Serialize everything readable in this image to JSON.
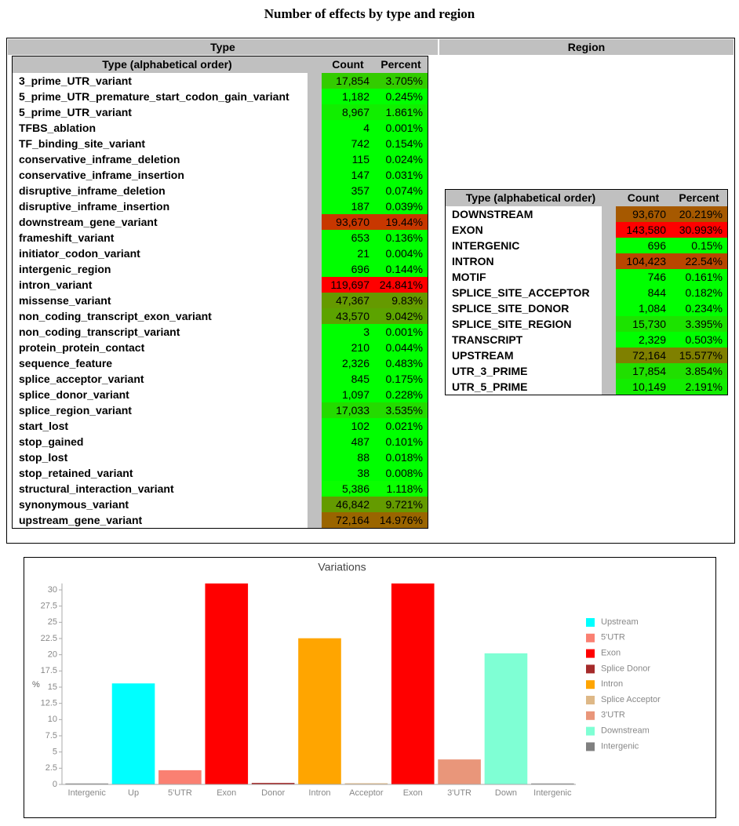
{
  "header": {
    "title": "Number of effects by type and region"
  },
  "layout_table": {
    "headers": [
      "Type",
      "Region"
    ]
  },
  "type_table": {
    "columns": [
      "Type (alphabetical order)",
      "Count",
      "Percent"
    ],
    "rows": [
      [
        "3_prime_UTR_variant",
        "17,854",
        "3.705%"
      ],
      [
        "5_prime_UTR_premature_start_codon_gain_variant",
        "1,182",
        "0.245%"
      ],
      [
        "5_prime_UTR_variant",
        "8,967",
        "1.861%"
      ],
      [
        "TFBS_ablation",
        "4",
        "0.001%"
      ],
      [
        "TF_binding_site_variant",
        "742",
        "0.154%"
      ],
      [
        "conservative_inframe_deletion",
        "115",
        "0.024%"
      ],
      [
        "conservative_inframe_insertion",
        "147",
        "0.031%"
      ],
      [
        "disruptive_inframe_deletion",
        "357",
        "0.074%"
      ],
      [
        "disruptive_inframe_insertion",
        "187",
        "0.039%"
      ],
      [
        "downstream_gene_variant",
        "93,670",
        "19.44%"
      ],
      [
        "frameshift_variant",
        "653",
        "0.136%"
      ],
      [
        "initiator_codon_variant",
        "21",
        "0.004%"
      ],
      [
        "intergenic_region",
        "696",
        "0.144%"
      ],
      [
        "intron_variant",
        "119,697",
        "24.841%"
      ],
      [
        "missense_variant",
        "47,367",
        "9.83%"
      ],
      [
        "non_coding_transcript_exon_variant",
        "43,570",
        "9.042%"
      ],
      [
        "non_coding_transcript_variant",
        "3",
        "0.001%"
      ],
      [
        "protein_protein_contact",
        "210",
        "0.044%"
      ],
      [
        "sequence_feature",
        "2,326",
        "0.483%"
      ],
      [
        "splice_acceptor_variant",
        "845",
        "0.175%"
      ],
      [
        "splice_donor_variant",
        "1,097",
        "0.228%"
      ],
      [
        "splice_region_variant",
        "17,033",
        "3.535%"
      ],
      [
        "start_lost",
        "102",
        "0.021%"
      ],
      [
        "stop_gained",
        "487",
        "0.101%"
      ],
      [
        "stop_lost",
        "88",
        "0.018%"
      ],
      [
        "stop_retained_variant",
        "38",
        "0.008%"
      ],
      [
        "structural_interaction_variant",
        "5,386",
        "1.118%"
      ],
      [
        "synonymous_variant",
        "46,842",
        "9.721%"
      ],
      [
        "upstream_gene_variant",
        "72,164",
        "14.976%"
      ]
    ],
    "row_colors": [
      "#33cc00",
      "#00ff00",
      "#11ee00",
      "#00ff00",
      "#00ff00",
      "#00ff00",
      "#00ff00",
      "#00ff00",
      "#00ff00",
      "#c83700",
      "#00ff00",
      "#00ff00",
      "#00ff00",
      "#ff0000",
      "#659a00",
      "#5ca300",
      "#00ff00",
      "#00ff00",
      "#00ff00",
      "#00ff00",
      "#00ff00",
      "#24db00",
      "#00ff00",
      "#00ff00",
      "#00ff00",
      "#00ff00",
      "#0aff00",
      "#649b00",
      "#9a6500"
    ]
  },
  "region_table": {
    "columns": [
      "Type (alphabetical order)",
      "Count",
      "Percent"
    ],
    "rows": [
      [
        "DOWNSTREAM",
        "93,670",
        "20.219%"
      ],
      [
        "EXON",
        "143,580",
        "30.993%"
      ],
      [
        "INTERGENIC",
        "696",
        "0.15%"
      ],
      [
        "INTRON",
        "104,423",
        "22.54%"
      ],
      [
        "MOTIF",
        "746",
        "0.161%"
      ],
      [
        "SPLICE_SITE_ACCEPTOR",
        "844",
        "0.182%"
      ],
      [
        "SPLICE_SITE_DONOR",
        "1,084",
        "0.234%"
      ],
      [
        "SPLICE_SITE_REGION",
        "15,730",
        "3.395%"
      ],
      [
        "TRANSCRIPT",
        "2,329",
        "0.503%"
      ],
      [
        "UPSTREAM",
        "72,164",
        "15.577%"
      ],
      [
        "UTR_3_PRIME",
        "17,854",
        "3.854%"
      ],
      [
        "UTR_5_PRIME",
        "10,149",
        "2.191%"
      ]
    ],
    "row_colors": [
      "#a65900",
      "#ff0000",
      "#00ff00",
      "#b94600",
      "#00ff00",
      "#00ff00",
      "#00ff00",
      "#1ce300",
      "#00ff00",
      "#7f8000",
      "#20df00",
      "#12ed00"
    ]
  },
  "chart_data": {
    "type": "bar",
    "title": "Variations",
    "y_label": "%",
    "categories": [
      "Intergenic",
      "Up",
      "5'UTR",
      "Exon",
      "Donor",
      "Intron",
      "Acceptor",
      "Exon",
      "3'UTR",
      "Down",
      "Intergenic"
    ],
    "values": [
      0.15,
      15.577,
      2.191,
      30.993,
      0.234,
      22.54,
      0.182,
      30.993,
      3.854,
      20.219,
      0.15
    ],
    "colors": [
      "#808080",
      "#00ffff",
      "#fa8072",
      "#ff0000",
      "#a52a2a",
      "#ffa500",
      "#deb887",
      "#ff0000",
      "#e9967a",
      "#7fffd4",
      "#808080"
    ],
    "ylim": [
      0,
      31
    ],
    "yticks": [
      0,
      2.5,
      5,
      7.5,
      10,
      12.5,
      15,
      17.5,
      20,
      22.5,
      25,
      27.5,
      30
    ],
    "legend": [
      {
        "name": "Upstream",
        "color": "#00ffff"
      },
      {
        "name": "5'UTR",
        "color": "#fa8072"
      },
      {
        "name": "Exon",
        "color": "#ff0000"
      },
      {
        "name": "Splice Donor",
        "color": "#a52a2a"
      },
      {
        "name": "Intron",
        "color": "#ffa500"
      },
      {
        "name": "Splice Acceptor",
        "color": "#deb887"
      },
      {
        "name": "3'UTR",
        "color": "#e9967a"
      },
      {
        "name": "Downstream",
        "color": "#7fffd4"
      },
      {
        "name": "Intergenic",
        "color": "#808080"
      }
    ]
  }
}
